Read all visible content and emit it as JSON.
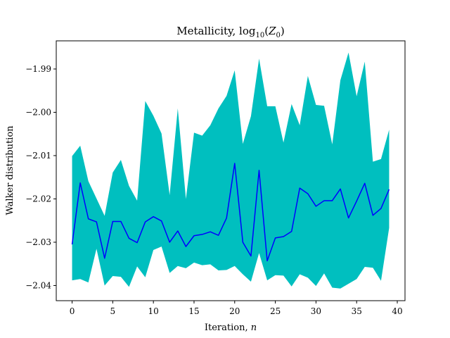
{
  "chart_data": {
    "type": "line",
    "title": "Metallicity, log",
    "title_subscript": "10",
    "title_tail_open": "(",
    "title_var": "Z",
    "title_var_subscript": "0",
    "title_tail_close": ")",
    "xlabel": "Iteration, ",
    "xlabel_var": "n",
    "ylabel": "Walker distribution",
    "xlim": [
      -1.95,
      40.95
    ],
    "ylim": [
      -2.0435,
      -1.9835
    ],
    "xticks": [
      0,
      5,
      10,
      15,
      20,
      25,
      30,
      35,
      40
    ],
    "xtick_labels": [
      "0",
      "5",
      "10",
      "15",
      "20",
      "25",
      "30",
      "35",
      "40"
    ],
    "yticks": [
      -2.04,
      -2.03,
      -2.02,
      -2.01,
      -2.0,
      -1.99
    ],
    "ytick_labels": [
      "−2.04",
      "−2.03",
      "−2.02",
      "−2.01",
      "−2.00",
      "−1.99"
    ],
    "grid": false,
    "series": [
      {
        "kind": "line",
        "color": "#0000ff",
        "x": [
          0,
          1,
          2,
          3,
          4,
          5,
          6,
          7,
          8,
          9,
          10,
          11,
          12,
          13,
          14,
          15,
          16,
          17,
          18,
          19,
          20,
          21,
          22,
          23,
          24,
          25,
          26,
          27,
          28,
          29,
          30,
          31,
          32,
          33,
          34,
          35,
          36,
          37,
          38,
          39
        ],
        "values": [
          -2.0305,
          -2.0163,
          -2.0246,
          -2.0253,
          -2.0337,
          -2.0252,
          -2.0252,
          -2.0291,
          -2.0301,
          -2.0253,
          -2.0241,
          -2.0251,
          -2.03,
          -2.0274,
          -2.031,
          -2.0285,
          -2.0282,
          -2.0276,
          -2.0284,
          -2.0244,
          -2.0118,
          -2.03,
          -2.0332,
          -2.0134,
          -2.0343,
          -2.029,
          -2.0287,
          -2.0275,
          -2.0175,
          -2.0188,
          -2.0217,
          -2.0204,
          -2.0204,
          -2.0177,
          -2.0244,
          -2.0205,
          -2.0164,
          -2.0238,
          -2.0222,
          -2.0178
        ]
      },
      {
        "kind": "band",
        "color": "#00bfbf",
        "x": [
          0,
          1,
          2,
          3,
          4,
          5,
          6,
          7,
          8,
          9,
          10,
          11,
          12,
          13,
          14,
          15,
          16,
          17,
          18,
          19,
          20,
          21,
          22,
          23,
          24,
          25,
          26,
          27,
          28,
          29,
          30,
          31,
          32,
          33,
          34,
          35,
          36,
          37,
          38,
          39
        ],
        "upper": [
          -2.0101,
          -2.0077,
          -2.0159,
          -2.0199,
          -2.0239,
          -2.0139,
          -2.011,
          -2.017,
          -2.0204,
          -1.9974,
          -2.0008,
          -2.0049,
          -2.0191,
          -1.9991,
          -2.02,
          -2.0047,
          -2.0054,
          -2.003,
          -1.9991,
          -1.9962,
          -1.9903,
          -2.0073,
          -2.0009,
          -1.9876,
          -1.9986,
          -1.9986,
          -2.007,
          -1.9981,
          -2.003,
          -1.9916,
          -1.9983,
          -1.9985,
          -2.0074,
          -1.9926,
          -1.9862,
          -1.9963,
          -1.9883,
          -2.0114,
          -2.0108,
          -2.004
        ],
        "lower": [
          -2.0388,
          -2.0385,
          -2.0393,
          -2.0315,
          -2.04,
          -2.0378,
          -2.038,
          -2.0403,
          -2.0356,
          -2.0381,
          -2.0318,
          -2.031,
          -2.0371,
          -2.0355,
          -2.036,
          -2.0347,
          -2.0353,
          -2.0351,
          -2.0365,
          -2.0364,
          -2.0355,
          -2.0374,
          -2.0391,
          -2.0325,
          -2.0388,
          -2.0376,
          -2.0377,
          -2.0402,
          -2.0374,
          -2.0382,
          -2.0401,
          -2.0372,
          -2.0405,
          -2.0407,
          -2.0396,
          -2.0385,
          -2.0357,
          -2.0359,
          -2.0389,
          -2.0267
        ]
      }
    ]
  }
}
